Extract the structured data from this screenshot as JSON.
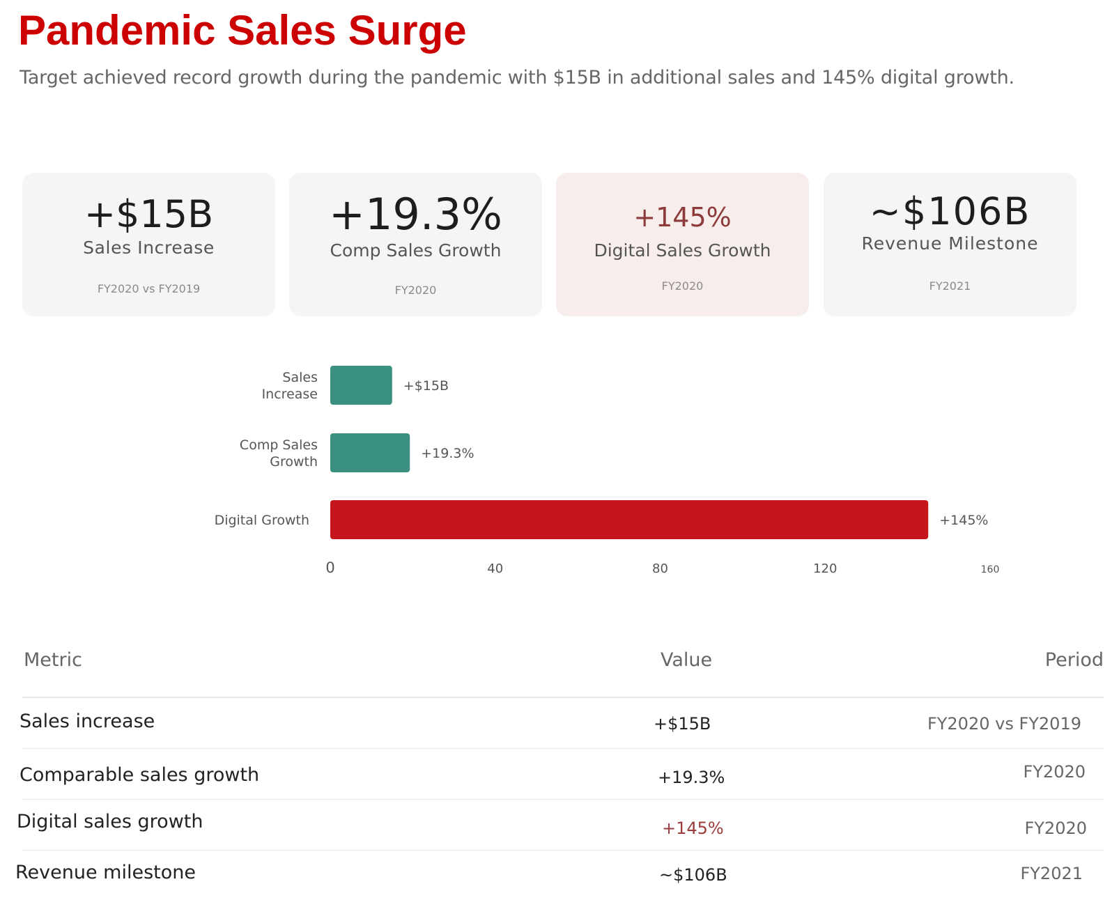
{
  "header": {
    "title": "Pandemic Sales Surge",
    "subtitle": "Target achieved record growth during the pandemic with $15B in additional sales and 145% digital growth."
  },
  "cards": [
    {
      "value": "+$15B",
      "label": "Sales Increase",
      "period": "FY2020 vs FY2019"
    },
    {
      "value": "+19.3%",
      "label": "Comp Sales Growth",
      "period": "FY2020"
    },
    {
      "value": "+145%",
      "label": "Digital Sales Growth",
      "period": "FY2020"
    },
    {
      "value": "~$106B",
      "label": "Revenue Milestone",
      "period": "FY2021"
    }
  ],
  "chart_data": {
    "type": "bar",
    "orientation": "horizontal",
    "categories": [
      "Sales Increase",
      "Comp Sales Growth",
      "Digital Growth"
    ],
    "values": [
      15,
      19.3,
      145
    ],
    "data_labels": [
      "+$15B",
      "+19.3%",
      "+145%"
    ],
    "xlim": [
      0,
      160
    ],
    "xticks": [
      "0",
      "40",
      "80",
      "120",
      "160"
    ],
    "bar_colors": [
      "#3a9181",
      "#3a9181",
      "#c4161c"
    ],
    "grid": false,
    "legend": "none"
  },
  "table": {
    "headers": [
      "Metric",
      "Value",
      "Period"
    ],
    "rows": [
      {
        "metric": "Sales increase",
        "value": "+$15B",
        "period": "FY2020 vs FY2019"
      },
      {
        "metric": "Comparable sales growth",
        "value": "+19.3%",
        "period": "FY2020"
      },
      {
        "metric": "Digital sales growth",
        "value": "+145%",
        "period": "FY2020"
      },
      {
        "metric": "Revenue milestone",
        "value": "~$106B",
        "period": "FY2021"
      }
    ]
  },
  "colors": {
    "title": "#cc0000",
    "accent_text": "#8d3a3a",
    "teal_bar": "#3a9181",
    "red_bar": "#c4161c",
    "card_bg": "#f6f5f3",
    "card_highlight_bg": "#f7eeec"
  }
}
